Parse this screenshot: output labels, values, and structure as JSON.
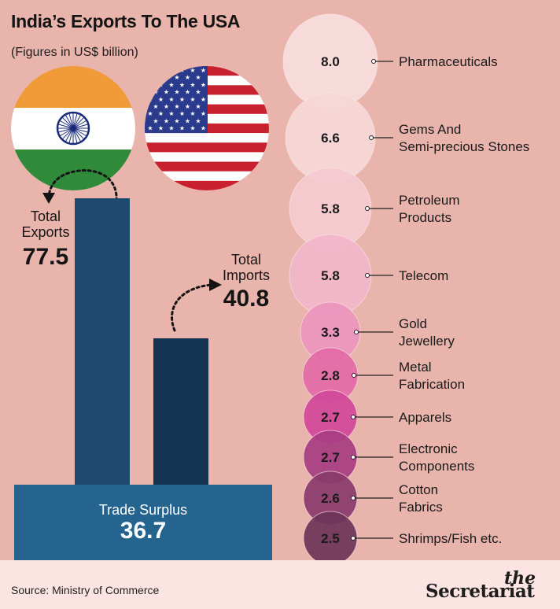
{
  "title": "India’s Exports To The USA",
  "subtitle": "(Figures in US$ billion)",
  "exports": {
    "label_line1": "Total",
    "label_line2": "Exports",
    "value": "77.5"
  },
  "imports": {
    "label_line1": "Total",
    "label_line2": "Imports",
    "value": "40.8"
  },
  "surplus": {
    "label": "Trade Surplus",
    "value": "36.7"
  },
  "source": "Source: Ministry of Commerce",
  "logo": {
    "top": "the",
    "main": "Secretariat"
  },
  "colors": {
    "background": "#e8b4ab",
    "footer": "#fbe4e1",
    "exports_bar": "#1d4a6e",
    "imports_bar": "#143352",
    "surplus_box": "#24648f"
  },
  "chart_data": [
    {
      "type": "bar",
      "title": "India’s Exports To The USA",
      "categories": [
        "Total Exports",
        "Total Imports"
      ],
      "values": [
        77.5,
        40.8
      ],
      "annotation": "Trade Surplus 36.7"
    },
    {
      "type": "bubble",
      "categories": [
        "Pharmaceuticals",
        "Gems And Semi-precious Stones",
        "Petroleum Products",
        "Telecom",
        "Gold Jewellery",
        "Metal Fabrication",
        "Apparels",
        "Electronic Components",
        "Cotton Fabrics",
        "Shrimps/Fish etc."
      ],
      "values": [
        8.0,
        6.6,
        5.8,
        5.8,
        3.3,
        2.8,
        2.7,
        2.7,
        2.6,
        2.5
      ]
    }
  ],
  "bubble_items": [
    {
      "value": "8.0",
      "label_lines": [
        "Pharmaceuticals"
      ],
      "color": "#f7dede",
      "text_color": "#1a1a1a"
    },
    {
      "value": "6.6",
      "label_lines": [
        "Gems And",
        "Semi-precious Stones"
      ],
      "color": "#f6d7d8",
      "text_color": "#1a1a1a"
    },
    {
      "value": "5.8",
      "label_lines": [
        "Petroleum",
        "Products"
      ],
      "color": "#f4cbd2",
      "text_color": "#1a1a1a"
    },
    {
      "value": "5.8",
      "label_lines": [
        "Telecom"
      ],
      "color": "#f1b6c9",
      "text_color": "#1a1a1a"
    },
    {
      "value": "3.3",
      "label_lines": [
        "Gold",
        "Jewellery"
      ],
      "color": "#ec94bd",
      "text_color": "#1a1a1a"
    },
    {
      "value": "2.8",
      "label_lines": [
        "Metal",
        "Fabrication"
      ],
      "color": "#e36aa8",
      "text_color": "#1a1a1a"
    },
    {
      "value": "2.7",
      "label_lines": [
        "Apparels"
      ],
      "color": "#d2489a",
      "text_color": "#1a1a1a"
    },
    {
      "value": "2.7",
      "label_lines": [
        "Electronic",
        "Components"
      ],
      "color": "#a83d82",
      "text_color": "#1a1a1a"
    },
    {
      "value": "2.6",
      "label_lines": [
        "Cotton",
        "Fabrics"
      ],
      "color": "#8a3a6e",
      "text_color": "#1a1a1a"
    },
    {
      "value": "2.5",
      "label_lines": [
        "Shrimps/Fish etc."
      ],
      "color": "#6e3558",
      "text_color": "#1a1a1a"
    }
  ]
}
